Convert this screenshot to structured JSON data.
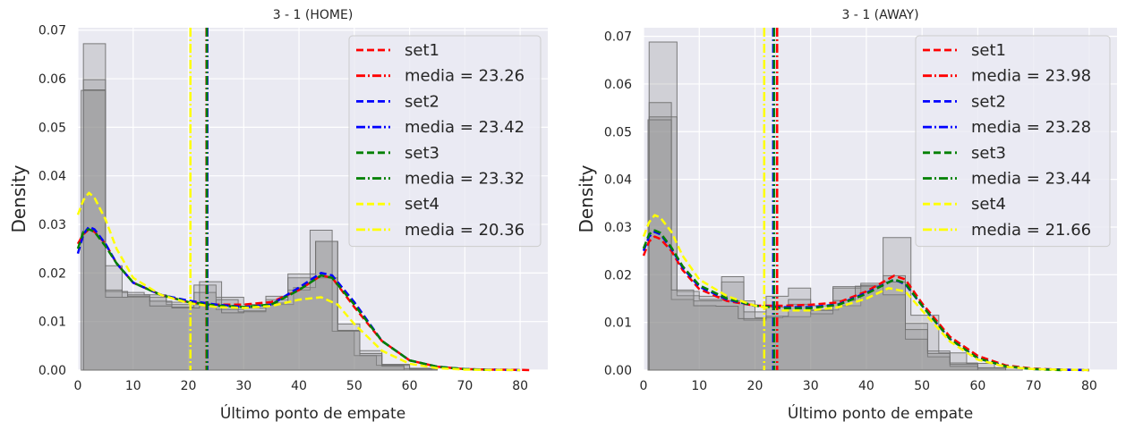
{
  "chart_data": [
    {
      "type": "histogram+kde",
      "title": "3 - 1 (HOME)",
      "xlabel": "Último ponto de empate",
      "ylabel": "Density",
      "xlim": [
        0,
        85
      ],
      "ylim": [
        0,
        0.0705
      ],
      "xticks": [
        "0",
        "10",
        "20",
        "30",
        "40",
        "50",
        "60",
        "70",
        "80"
      ],
      "yticks": [
        "0.00",
        "0.01",
        "0.02",
        "0.03",
        "0.04",
        "0.05",
        "0.06",
        "0.07"
      ],
      "legend": [
        {
          "label": "set1",
          "color": "#ff0000",
          "style": "dashed"
        },
        {
          "label": "media = 23.26",
          "color": "#ff0000",
          "style": "dashdot"
        },
        {
          "label": "set2",
          "color": "#0000ff",
          "style": "dashed"
        },
        {
          "label": "media = 23.42",
          "color": "#0000ff",
          "style": "dashdot"
        },
        {
          "label": "set3",
          "color": "#008000",
          "style": "dashed"
        },
        {
          "label": "media = 23.32",
          "color": "#008000",
          "style": "dashdot"
        },
        {
          "label": "set4",
          "color": "#ffff00",
          "style": "dashed"
        },
        {
          "label": "media = 20.36",
          "color": "#ffff00",
          "style": "dashdot"
        }
      ],
      "means": [
        {
          "set": "set1",
          "value": 23.26,
          "color": "#ff0000"
        },
        {
          "set": "set2",
          "value": 23.42,
          "color": "#0000ff"
        },
        {
          "set": "set3",
          "value": 23.32,
          "color": "#008000"
        },
        {
          "set": "set4",
          "value": 20.36,
          "color": "#ffff00"
        }
      ],
      "kde": [
        {
          "name": "set1",
          "color": "#ff0000",
          "x": [
            0,
            1,
            2,
            3,
            5,
            7,
            10,
            15,
            20,
            25,
            30,
            35,
            40,
            44,
            46,
            50,
            55,
            60,
            65,
            70,
            75,
            80,
            82
          ],
          "y": [
            0.026,
            0.028,
            0.029,
            0.0285,
            0.026,
            0.022,
            0.018,
            0.0155,
            0.014,
            0.0135,
            0.0135,
            0.014,
            0.0165,
            0.0195,
            0.019,
            0.013,
            0.006,
            0.002,
            0.0007,
            0.0002,
            0.0001,
            5e-05,
            0
          ]
        },
        {
          "name": "set2",
          "color": "#0000ff",
          "x": [
            0,
            1,
            2,
            3,
            5,
            7,
            10,
            15,
            20,
            25,
            30,
            35,
            40,
            44,
            46,
            50,
            55,
            60,
            65,
            70,
            75,
            80
          ],
          "y": [
            0.024,
            0.028,
            0.0295,
            0.029,
            0.026,
            0.022,
            0.018,
            0.0155,
            0.0143,
            0.0135,
            0.013,
            0.0135,
            0.017,
            0.02,
            0.0195,
            0.014,
            0.006,
            0.002,
            0.0007,
            0.0002,
            0.0001,
            0
          ]
        },
        {
          "name": "set3",
          "color": "#008000",
          "x": [
            0,
            1,
            2,
            3,
            5,
            7,
            10,
            15,
            20,
            25,
            30,
            35,
            40,
            44,
            46,
            50,
            55,
            60,
            65,
            70,
            75
          ],
          "y": [
            0.025,
            0.0285,
            0.029,
            0.0285,
            0.0255,
            0.022,
            0.018,
            0.0155,
            0.014,
            0.0133,
            0.013,
            0.0135,
            0.0165,
            0.0195,
            0.019,
            0.0135,
            0.006,
            0.002,
            0.0007,
            0.0002,
            0
          ]
        },
        {
          "name": "set4",
          "color": "#ffff00",
          "x": [
            0,
            1,
            2,
            3,
            5,
            7,
            10,
            15,
            20,
            25,
            30,
            35,
            40,
            44,
            47,
            50,
            55,
            60,
            65,
            70,
            75,
            80
          ],
          "y": [
            0.032,
            0.035,
            0.0365,
            0.0355,
            0.031,
            0.025,
            0.019,
            0.0155,
            0.0138,
            0.013,
            0.0128,
            0.0132,
            0.0145,
            0.015,
            0.0135,
            0.0095,
            0.004,
            0.0013,
            0.0004,
            0.0001,
            5e-05,
            0
          ]
        }
      ],
      "histograms": [
        {
          "edges": [
            1,
            5,
            8,
            12,
            16,
            21,
            25,
            30,
            35,
            39,
            43,
            47,
            51,
            55,
            60,
            65
          ],
          "density": [
            0.0672,
            0.0165,
            0.015,
            0.015,
            0.0135,
            0.0175,
            0.015,
            0.0135,
            0.0135,
            0.017,
            0.0265,
            0.0095,
            0.004,
            0.0012,
            0.0004
          ]
        },
        {
          "edges": [
            1,
            5,
            8,
            12,
            16,
            21,
            25,
            29,
            34,
            38,
            42,
            46,
            50,
            54,
            59,
            64
          ],
          "density": [
            0.0598,
            0.0215,
            0.016,
            0.0155,
            0.014,
            0.0135,
            0.0145,
            0.012,
            0.0145,
            0.0165,
            0.0288,
            0.008,
            0.003,
            0.001,
            0.0003
          ]
        },
        {
          "edges": [
            1,
            5,
            9,
            13,
            17,
            21,
            25,
            30,
            34,
            38,
            43,
            47,
            51,
            55,
            59
          ],
          "density": [
            0.0577,
            0.015,
            0.0155,
            0.0142,
            0.013,
            0.016,
            0.0125,
            0.0128,
            0.0152,
            0.019,
            0.019,
            0.008,
            0.003,
            0.0008
          ]
        },
        {
          "edges": [
            0.6,
            5,
            9,
            13,
            17,
            22,
            26,
            30,
            34,
            38,
            43,
            47,
            51,
            55,
            60,
            65
          ],
          "density": [
            0.0576,
            0.0162,
            0.0152,
            0.0132,
            0.0128,
            0.0182,
            0.0118,
            0.0122,
            0.0138,
            0.0198,
            0.0265,
            0.0082,
            0.0034,
            0.001,
            0.0002
          ]
        }
      ]
    },
    {
      "type": "histogram+kde",
      "title": "3 - 1 (AWAY)",
      "xlabel": "Último ponto de empate",
      "ylabel": "Density",
      "xlim": [
        0,
        85
      ],
      "ylim": [
        0,
        0.0718
      ],
      "xticks": [
        "0",
        "10",
        "20",
        "30",
        "40",
        "50",
        "60",
        "70",
        "80"
      ],
      "yticks": [
        "0.00",
        "0.01",
        "0.02",
        "0.03",
        "0.04",
        "0.05",
        "0.06",
        "0.07"
      ],
      "legend": [
        {
          "label": "set1",
          "color": "#ff0000",
          "style": "dashed"
        },
        {
          "label": "media = 23.98",
          "color": "#ff0000",
          "style": "dashdot"
        },
        {
          "label": "set2",
          "color": "#0000ff",
          "style": "dashed"
        },
        {
          "label": "media = 23.28",
          "color": "#0000ff",
          "style": "dashdot"
        },
        {
          "label": "set3",
          "color": "#008000",
          "style": "dashed"
        },
        {
          "label": "media = 23.44",
          "color": "#008000",
          "style": "dashdot"
        },
        {
          "label": "set4",
          "color": "#ffff00",
          "style": "dashed"
        },
        {
          "label": "media = 21.66",
          "color": "#ffff00",
          "style": "dashdot"
        }
      ],
      "means": [
        {
          "set": "set1",
          "value": 23.98,
          "color": "#ff0000"
        },
        {
          "set": "set2",
          "value": 23.28,
          "color": "#0000ff"
        },
        {
          "set": "set3",
          "value": 23.44,
          "color": "#008000"
        },
        {
          "set": "set4",
          "value": 21.66,
          "color": "#ffff00"
        }
      ],
      "kde": [
        {
          "name": "set1",
          "color": "#ff0000",
          "x": [
            0,
            1,
            2,
            3,
            5,
            7,
            10,
            15,
            20,
            25,
            30,
            35,
            40,
            45,
            47,
            50,
            55,
            60,
            65,
            70,
            75,
            80
          ],
          "y": [
            0.024,
            0.027,
            0.028,
            0.0275,
            0.025,
            0.021,
            0.017,
            0.0145,
            0.0135,
            0.0135,
            0.0137,
            0.0142,
            0.0165,
            0.0198,
            0.019,
            0.014,
            0.007,
            0.003,
            0.001,
            0.0003,
            0.0001,
            0
          ]
        },
        {
          "name": "set2",
          "color": "#0000ff",
          "x": [
            0,
            1,
            2,
            3,
            5,
            7,
            10,
            15,
            20,
            25,
            30,
            35,
            40,
            45,
            47,
            50,
            55,
            60,
            65,
            70,
            75,
            80
          ],
          "y": [
            0.025,
            0.028,
            0.029,
            0.0285,
            0.0255,
            0.0215,
            0.0175,
            0.0148,
            0.0135,
            0.0132,
            0.0132,
            0.0138,
            0.0162,
            0.019,
            0.018,
            0.0135,
            0.0065,
            0.0025,
            0.0008,
            0.0002,
            0.0001,
            0
          ]
        },
        {
          "name": "set3",
          "color": "#008000",
          "x": [
            0,
            1,
            2,
            3,
            5,
            7,
            10,
            15,
            20,
            25,
            30,
            35,
            40,
            45,
            47,
            50,
            55,
            60,
            65,
            70,
            75
          ],
          "y": [
            0.0255,
            0.0285,
            0.0293,
            0.0288,
            0.0257,
            0.0218,
            0.0178,
            0.015,
            0.0135,
            0.013,
            0.013,
            0.0137,
            0.016,
            0.019,
            0.0182,
            0.0135,
            0.0065,
            0.0025,
            0.0008,
            0.0002,
            0
          ]
        },
        {
          "name": "set4",
          "color": "#ffff00",
          "x": [
            0,
            1,
            2,
            3,
            5,
            7,
            10,
            15,
            20,
            25,
            30,
            35,
            40,
            44,
            47,
            50,
            55,
            60,
            65,
            70,
            75,
            80
          ],
          "y": [
            0.028,
            0.031,
            0.0325,
            0.032,
            0.029,
            0.024,
            0.019,
            0.0155,
            0.0135,
            0.0125,
            0.0125,
            0.0132,
            0.015,
            0.0172,
            0.0165,
            0.0125,
            0.006,
            0.0022,
            0.0007,
            0.0002,
            0.0001,
            0
          ]
        }
      ],
      "histograms": [
        {
          "edges": [
            1,
            6,
            10,
            15,
            20,
            25,
            30,
            35,
            39,
            43,
            48,
            53,
            58,
            63,
            68
          ],
          "density": [
            0.0688,
            0.0156,
            0.0155,
            0.0145,
            0.011,
            0.0112,
            0.0126,
            0.0135,
            0.0178,
            0.0278,
            0.0115,
            0.0036,
            0.0014,
            0.0005
          ]
        },
        {
          "edges": [
            1,
            5,
            9,
            14,
            18,
            22,
            26,
            30,
            34,
            39,
            43,
            47,
            51,
            55,
            60,
            65
          ],
          "density": [
            0.0561,
            0.0148,
            0.0145,
            0.0185,
            0.0122,
            0.0132,
            0.0138,
            0.0125,
            0.0172,
            0.0178,
            0.0198,
            0.0098,
            0.004,
            0.0015,
            0.0005
          ]
        },
        {
          "edges": [
            1,
            6,
            10,
            14,
            18,
            22,
            26,
            30,
            34,
            39,
            43,
            47,
            51,
            55,
            60
          ],
          "density": [
            0.0531,
            0.0165,
            0.0148,
            0.0196,
            0.0105,
            0.0155,
            0.0172,
            0.0118,
            0.0175,
            0.0182,
            0.0158,
            0.0065,
            0.0028,
            0.0008
          ]
        },
        {
          "edges": [
            0.8,
            5,
            9,
            13,
            17,
            22,
            26,
            30,
            34,
            38,
            43,
            47,
            51,
            55,
            60,
            65
          ],
          "density": [
            0.0525,
            0.0168,
            0.0135,
            0.0134,
            0.0108,
            0.0113,
            0.0148,
            0.0135,
            0.0146,
            0.0176,
            0.0185,
            0.0085,
            0.0035,
            0.0012,
            0.0004
          ]
        }
      ]
    }
  ]
}
